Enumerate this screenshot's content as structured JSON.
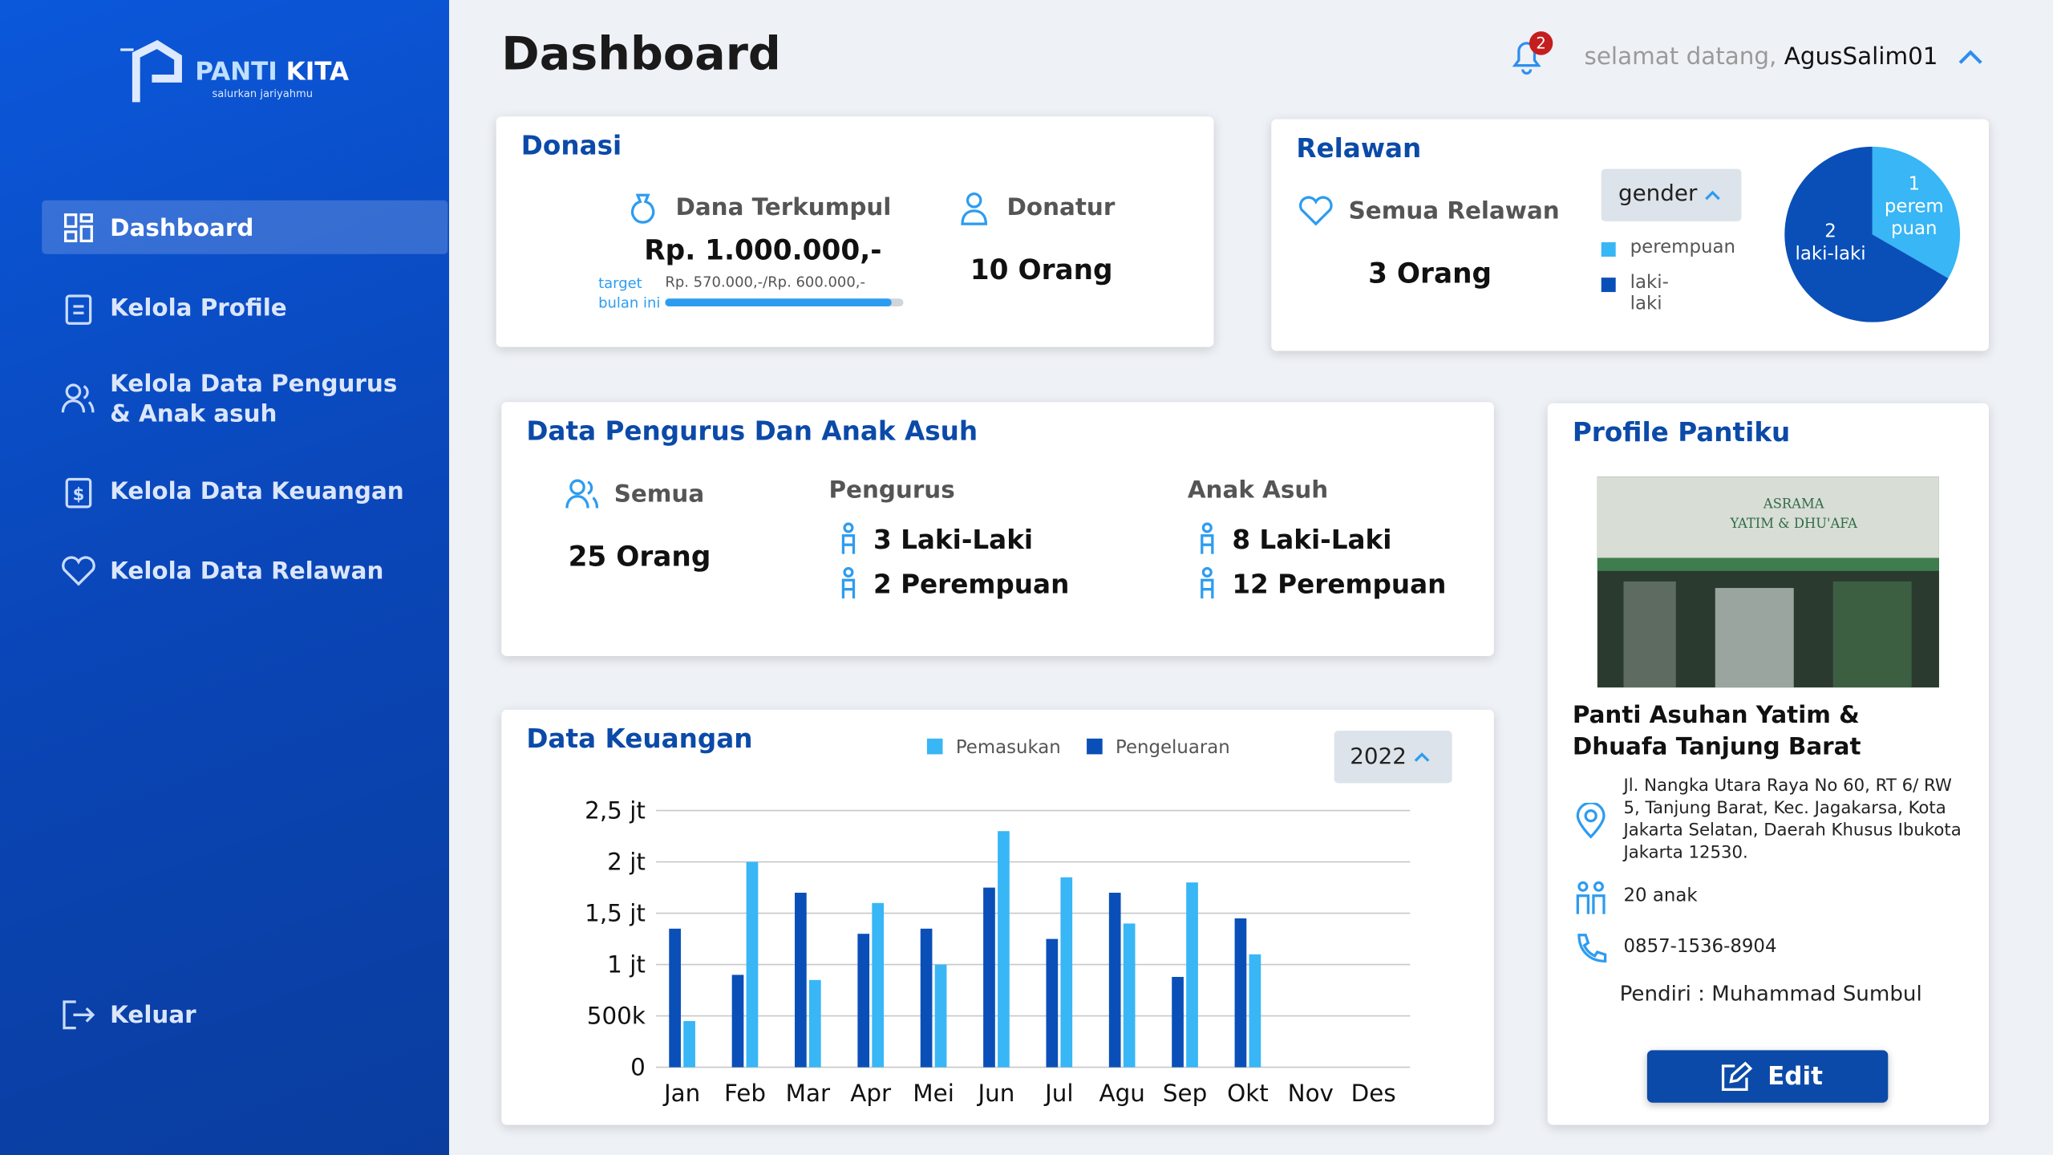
{
  "header": {
    "title": "Dashboard",
    "notification_count": 2,
    "greeting": "selamat datang,",
    "username": "AgusSalim01"
  },
  "sidebar": {
    "brand_1": "PANTI",
    "brand_2": "KITA",
    "tagline": "salurkan jariyahmu",
    "menu": [
      "Dashboard",
      "Kelola Profile",
      "Kelola Data Pengurus & Anak asuh",
      "Kelola Data Keuangan",
      "Kelola Data Relawan"
    ],
    "logout": "Keluar"
  },
  "donasi": {
    "title": "Donasi",
    "collected_label": "Dana Terkumpul",
    "collected": "Rp. 1.000.000,-",
    "target_label": "target bulan ini",
    "progress": {
      "label": "Rp. 570.000,-/Rp. 600.000,-",
      "value": 570000,
      "max": 600000
    },
    "donor_label": "Donatur",
    "donors": "10 Orang"
  },
  "relawan": {
    "title": "Relawan",
    "all_label": "Semua Relawan",
    "total": "3 Orang",
    "filter": "gender",
    "chart": {
      "type": "pie",
      "categories": [
        "perempuan",
        "laki-laki"
      ],
      "values": [
        1,
        2
      ],
      "colors": [
        "#38b6f5",
        "#0a4fb8"
      ]
    }
  },
  "pengurus": {
    "title": "Data Pengurus Dan Anak Asuh",
    "all_label": "Semua",
    "total": "25 Orang",
    "groups": [
      {
        "title": "Pengurus",
        "items": [
          "3 Laki-Laki",
          "2 Perempuan"
        ]
      },
      {
        "title": "Anak Asuh",
        "items": [
          "8 Laki-Laki",
          "12 Perempuan"
        ]
      }
    ]
  },
  "keuangan": {
    "title": "Data Keuangan",
    "year": "2022",
    "chart": {
      "type": "bar",
      "categories": [
        "Jan",
        "Feb",
        "Mar",
        "Apr",
        "Mei",
        "Jun",
        "Jul",
        "Agu",
        "Sep",
        "Okt",
        "Nov",
        "Des"
      ],
      "series": [
        {
          "name": "Pemasukan",
          "color": "#38b6f5",
          "values": [
            450000,
            2000000,
            850000,
            1600000,
            1000000,
            2300000,
            1850000,
            1400000,
            1800000,
            1100000,
            null,
            null
          ]
        },
        {
          "name": "Pengeluaran",
          "color": "#0a4fb8",
          "values": [
            1350000,
            900000,
            1700000,
            1300000,
            1350000,
            1750000,
            1250000,
            1700000,
            880000,
            1450000,
            null,
            null
          ]
        }
      ],
      "ylim": [
        0,
        2500000
      ],
      "yticks": [
        0,
        {
          "value": 500000,
          "label": "500k"
        },
        {
          "value": 1000000,
          "label": "1 jt"
        },
        {
          "value": 1500000,
          "label": "1,5 jt"
        },
        {
          "value": 2000000,
          "label": "2 jt"
        },
        {
          "value": 2500000,
          "label": "2,5 jt"
        }
      ],
      "grid": true
    }
  },
  "profile": {
    "title": "Profile Pantiku",
    "photo_sign": [
      "ASRAMA",
      "YATIM & DHU'AFA"
    ],
    "name": "Panti Asuhan Yatim & Dhuafa Tanjung Barat",
    "address": "Jl. Nangka Utara Raya No 60, RT 6/ RW 5, Tanjung Barat, Kec. Jagakarsa, Kota Jakarta Selatan, Daerah Khusus Ibukota Jakarta 12530.",
    "children": "20 anak",
    "phone": "0857-1536-8904",
    "founder": "Pendiri : Muhammad Sumbul",
    "button": "Edit"
  }
}
